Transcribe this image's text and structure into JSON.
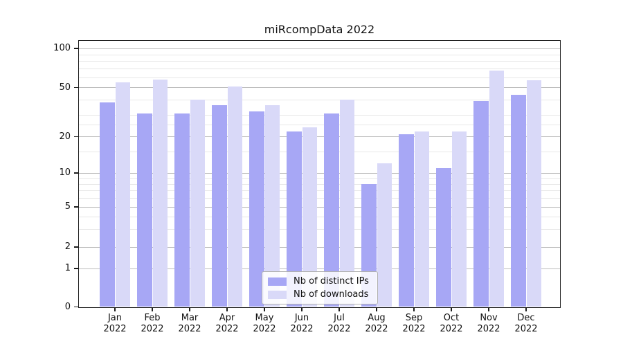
{
  "chart_data": {
    "type": "bar",
    "title": "miRcompData 2022",
    "categories": [
      "Jan",
      "Feb",
      "Mar",
      "Apr",
      "May",
      "Jun",
      "Jul",
      "Aug",
      "Sep",
      "Oct",
      "Nov",
      "Dec"
    ],
    "category_year": "2022",
    "series": [
      {
        "name": "Nb of distinct IPs",
        "color": "#a7a7f5",
        "values": [
          38,
          31,
          31,
          36,
          32,
          22,
          31,
          8,
          21,
          11,
          39,
          44
        ]
      },
      {
        "name": "Nb of downloads",
        "color": "#d9d9f8",
        "values": [
          55,
          58,
          40,
          51,
          36,
          24,
          40,
          12,
          22,
          22,
          68,
          57
        ]
      }
    ],
    "yscale": "log-like",
    "yticks": [
      0,
      1,
      2,
      5,
      10,
      20,
      50,
      100
    ],
    "ytick_labels": [
      "0",
      "1",
      "2",
      "5",
      "10",
      "20",
      "50",
      "100"
    ],
    "minor_gridlines": [
      3,
      4,
      6,
      7,
      8,
      9,
      15,
      25,
      30,
      40,
      60,
      70,
      80,
      90
    ],
    "ylim": [
      0,
      110
    ],
    "grid": "horizontal",
    "legend_position": "bottom-center",
    "colors": {
      "major_grid": "#bbbbbb",
      "minor_grid": "#e7e7e7",
      "axis": "#1c1c1c",
      "background": "#ffffff"
    }
  }
}
